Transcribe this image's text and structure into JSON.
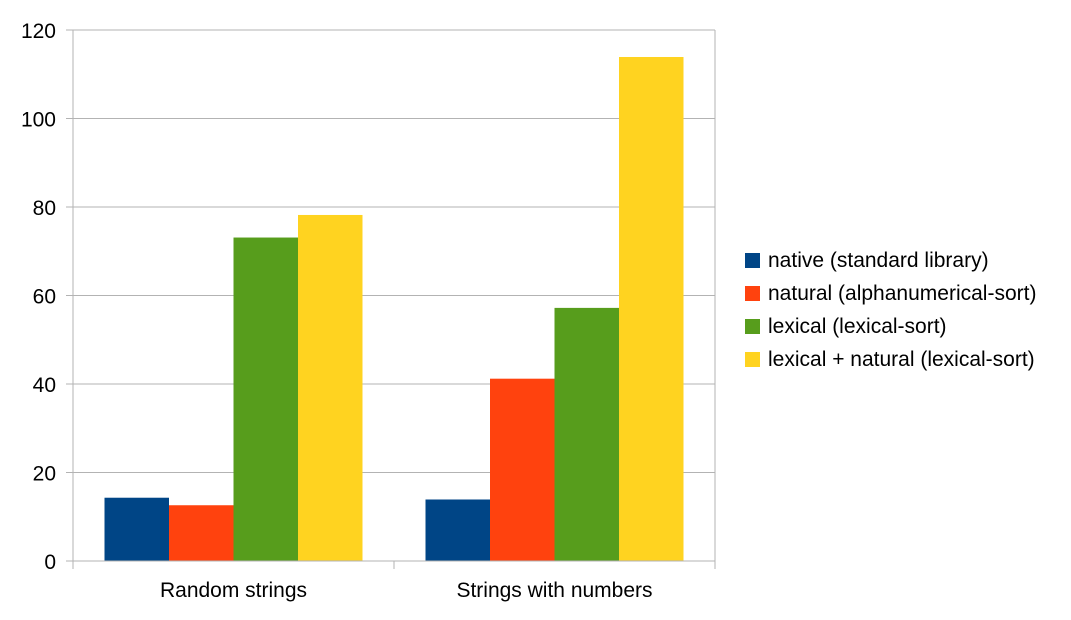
{
  "chart_data": {
    "type": "bar",
    "categories": [
      "Random strings",
      "Strings with numbers"
    ],
    "series": [
      {
        "name": "native (standard library)",
        "color": "#004586",
        "values": [
          14.3,
          13.9
        ]
      },
      {
        "name": "natural (alphanumerical-sort)",
        "color": "#ff420e",
        "values": [
          12.6,
          41.2
        ]
      },
      {
        "name": "lexical (lexical-sort)",
        "color": "#579d1c",
        "values": [
          73.1,
          57.2
        ]
      },
      {
        "name": "lexical + natural (lexical-sort)",
        "color": "#ffd320",
        "values": [
          78.2,
          113.9
        ]
      }
    ],
    "ylim": [
      0,
      120
    ],
    "yticks": [
      0,
      20,
      40,
      60,
      80,
      100,
      120
    ],
    "grid": true,
    "legend_position": "right"
  }
}
